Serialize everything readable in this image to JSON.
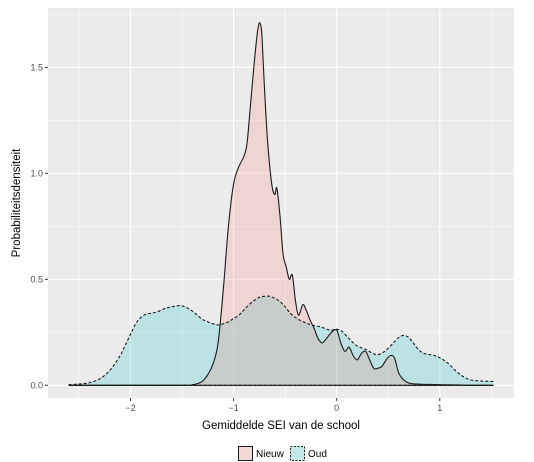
{
  "chart_data": {
    "type": "area",
    "title": "",
    "xlabel": "Gemiddelde SEI van de school",
    "ylabel": "Probabiliteitsdensiteit",
    "xlim": [
      -2.8,
      1.72
    ],
    "ylim": [
      -0.06,
      1.78
    ],
    "xticks": [
      -2,
      -1,
      0,
      1
    ],
    "xtick_labels": [
      "−2",
      "−1",
      "0",
      "1"
    ],
    "yticks": [
      0.0,
      0.5,
      1.0,
      1.5
    ],
    "ytick_labels": [
      "0.0",
      "0.5",
      "1.0",
      "1.5"
    ],
    "grid": true,
    "legend_position": "bottom",
    "colors": {
      "panel": "#ebebeb",
      "gridline": "#ffffff",
      "nieuw_fill": "#f8766d",
      "oud_fill": "#00bfc4",
      "line": "#1a1a1a",
      "text": "#4d4d4d"
    },
    "series": [
      {
        "name": "Nieuw",
        "linetype": "solid",
        "x": [
          -2.6,
          -1.5,
          -1.4,
          -1.35,
          -1.3,
          -1.25,
          -1.2,
          -1.15,
          -1.1,
          -1.05,
          -1.0,
          -0.95,
          -0.9,
          -0.87,
          -0.84,
          -0.8,
          -0.77,
          -0.75,
          -0.73,
          -0.72,
          -0.7,
          -0.67,
          -0.63,
          -0.6,
          -0.58,
          -0.55,
          -0.52,
          -0.49,
          -0.46,
          -0.43,
          -0.4,
          -0.37,
          -0.33,
          -0.3,
          -0.26,
          -0.22,
          -0.18,
          -0.14,
          -0.1,
          -0.05,
          0.0,
          0.04,
          0.08,
          0.12,
          0.16,
          0.2,
          0.24,
          0.28,
          0.32,
          0.36,
          0.4,
          0.44,
          0.48,
          0.52,
          0.56,
          0.6,
          0.64,
          0.68,
          0.72,
          0.8,
          0.9,
          1.0,
          1.1,
          1.2,
          1.3,
          1.4,
          1.52
        ],
        "y": [
          0.0,
          0.0,
          0.003,
          0.008,
          0.02,
          0.05,
          0.1,
          0.2,
          0.45,
          0.75,
          0.95,
          1.03,
          1.08,
          1.14,
          1.3,
          1.52,
          1.66,
          1.71,
          1.68,
          1.6,
          1.4,
          1.15,
          0.95,
          0.9,
          0.93,
          0.8,
          0.62,
          0.56,
          0.5,
          0.52,
          0.4,
          0.33,
          0.38,
          0.36,
          0.31,
          0.27,
          0.22,
          0.2,
          0.22,
          0.25,
          0.26,
          0.2,
          0.16,
          0.18,
          0.14,
          0.12,
          0.15,
          0.16,
          0.12,
          0.08,
          0.08,
          0.09,
          0.12,
          0.14,
          0.13,
          0.06,
          0.03,
          0.015,
          0.008,
          0.005,
          0.004,
          0.003,
          0.002,
          0.001,
          0.0,
          0.0,
          0.0
        ]
      },
      {
        "name": "Oud",
        "linetype": "dashed",
        "x": [
          -2.6,
          -2.5,
          -2.4,
          -2.3,
          -2.2,
          -2.1,
          -2.05,
          -2.0,
          -1.95,
          -1.9,
          -1.85,
          -1.8,
          -1.75,
          -1.7,
          -1.65,
          -1.6,
          -1.55,
          -1.5,
          -1.45,
          -1.4,
          -1.35,
          -1.3,
          -1.25,
          -1.2,
          -1.15,
          -1.1,
          -1.05,
          -1.0,
          -0.95,
          -0.9,
          -0.85,
          -0.8,
          -0.75,
          -0.7,
          -0.65,
          -0.6,
          -0.55,
          -0.5,
          -0.45,
          -0.4,
          -0.35,
          -0.3,
          -0.25,
          -0.2,
          -0.15,
          -0.1,
          -0.05,
          0.0,
          0.05,
          0.1,
          0.15,
          0.2,
          0.25,
          0.3,
          0.35,
          0.4,
          0.45,
          0.5,
          0.55,
          0.6,
          0.65,
          0.7,
          0.75,
          0.8,
          0.85,
          0.9,
          0.95,
          1.0,
          1.05,
          1.1,
          1.15,
          1.2,
          1.25,
          1.3,
          1.4,
          1.52
        ],
        "y": [
          0.003,
          0.006,
          0.012,
          0.03,
          0.07,
          0.14,
          0.19,
          0.24,
          0.29,
          0.32,
          0.335,
          0.34,
          0.345,
          0.355,
          0.365,
          0.37,
          0.375,
          0.375,
          0.365,
          0.35,
          0.33,
          0.31,
          0.3,
          0.29,
          0.285,
          0.29,
          0.3,
          0.315,
          0.33,
          0.355,
          0.38,
          0.4,
          0.415,
          0.42,
          0.42,
          0.41,
          0.395,
          0.37,
          0.34,
          0.32,
          0.305,
          0.295,
          0.285,
          0.28,
          0.275,
          0.265,
          0.26,
          0.265,
          0.255,
          0.23,
          0.205,
          0.185,
          0.175,
          0.165,
          0.15,
          0.145,
          0.155,
          0.175,
          0.2,
          0.225,
          0.235,
          0.225,
          0.195,
          0.165,
          0.15,
          0.145,
          0.14,
          0.13,
          0.115,
          0.095,
          0.07,
          0.05,
          0.035,
          0.025,
          0.02,
          0.018
        ]
      }
    ]
  }
}
